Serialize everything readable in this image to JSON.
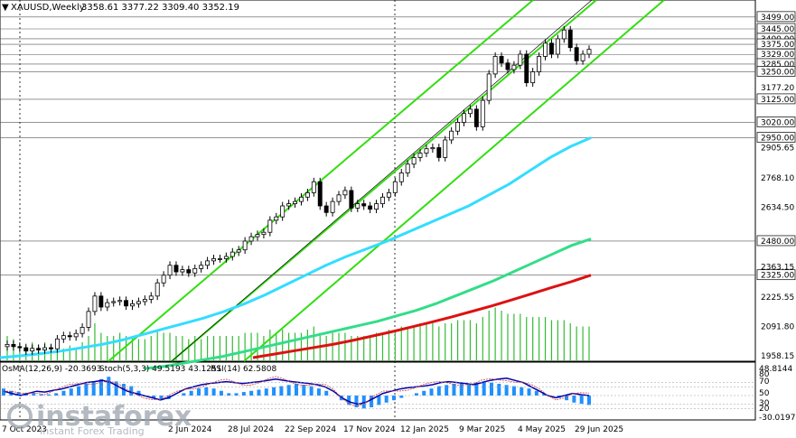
{
  "header": {
    "symbol": "XAUUSD,Weekly",
    "ohlc": "3358.61 3377.22 3309.40 3352.19"
  },
  "indicator_header": {
    "osma": "OsMA(12,26,9) -20.3693",
    "stoch": "Stoch(5,3,3) 49.5193 43.1251",
    "rsi": "RSI(14) 62.5808"
  },
  "watermark": {
    "brand": "instaforex",
    "tagline": "Instant Forex Trading"
  },
  "colors": {
    "up_candle": "#ffffff",
    "down_candle": "#000000",
    "ma_fast": "#33ddff",
    "ma_mid": "#33dd88",
    "ma_slow": "#dd1111",
    "channel": "#33dd11",
    "volume": "#33bb33",
    "osma": "#1e90ff",
    "stoch_main": "#0000aa",
    "stoch_signal": "#cc4444"
  },
  "chart_data": {
    "type": "candlestick",
    "price_axis_ticks": [
      "3499.00",
      "3445.00",
      "3400.00",
      "3375.00",
      "3329.00",
      "3285.00",
      "3250.00",
      "3177.20",
      "3125.00",
      "3020.00",
      "2950.00",
      "2905.65",
      "2768.10",
      "2634.50",
      "2480.00",
      "2363.15",
      "2325.00",
      "2225.55",
      "2091.80",
      "1958.15"
    ],
    "horizontal_levels": [
      3499.0,
      3445.0,
      3400.0,
      3375.0,
      3329.0,
      3285.0,
      3250.0,
      3125.0,
      3020.0,
      2950.0,
      2480.0,
      2325.0
    ],
    "ylim": [
      1950,
      3560
    ],
    "time_axis_labels": [
      "7 Oct 2023",
      "2 Jun 2024",
      "28 Jul 2024",
      "22 Sep 2024",
      "17 Nov 2024",
      "12 Jan 2025",
      "9 Mar 2025",
      "4 May 2025",
      "29 Jun 2025"
    ],
    "indicator_axis_ticks": [
      "48.8144",
      "80",
      "70",
      "50",
      "30",
      "20",
      "-30.0197"
    ],
    "closes": [
      2010,
      2000,
      1995,
      1980,
      1992,
      1985,
      1995,
      1990,
      2035,
      2050,
      2045,
      2060,
      2088,
      2160,
      2230,
      2180,
      2200,
      2205,
      2210,
      2185,
      2195,
      2205,
      2215,
      2230,
      2290,
      2325,
      2370,
      2340,
      2350,
      2335,
      2355,
      2370,
      2390,
      2400,
      2400,
      2410,
      2430,
      2440,
      2480,
      2500,
      2510,
      2520,
      2575,
      2590,
      2640,
      2650,
      2660,
      2680,
      2700,
      2750,
      2640,
      2610,
      2660,
      2690,
      2710,
      2630,
      2650,
      2640,
      2625,
      2650,
      2680,
      2700,
      2750,
      2790,
      2830,
      2860,
      2880,
      2900,
      2905,
      2860,
      2940,
      2980,
      3020,
      3060,
      3080,
      3000,
      3120,
      3240,
      3320,
      3290,
      3260,
      3280,
      3330,
      3200,
      3250,
      3320,
      3380,
      3330,
      3400,
      3440,
      3360,
      3300,
      3330,
      3352
    ],
    "ma_fast": [
      1950,
      1958,
      1968,
      1980,
      1995,
      2010,
      2030,
      2055,
      2080,
      2105,
      2130,
      2160,
      2195,
      2235,
      2280,
      2325,
      2370,
      2410,
      2445,
      2480,
      2520,
      2560,
      2600,
      2640,
      2690,
      2740,
      2800,
      2860,
      2910,
      2950
    ],
    "ma_mid": [
      1900,
      1910,
      1925,
      1940,
      1955,
      1975,
      1995,
      2015,
      2035,
      2055,
      2075,
      2095,
      2115,
      2140,
      2165,
      2195,
      2230,
      2265,
      2300,
      2340,
      2380,
      2420,
      2460,
      2490
    ],
    "ma_slow": [
      1950,
      1965,
      1980,
      1995,
      2010,
      2028,
      2048,
      2068,
      2090,
      2112,
      2135,
      2160,
      2185,
      2212,
      2240,
      2268,
      2295,
      2325
    ],
    "volume": [
      8,
      7,
      6,
      5,
      6,
      5,
      6,
      5,
      4,
      4,
      5,
      4,
      6,
      8,
      12,
      9,
      8,
      8,
      9,
      8,
      8,
      7,
      7,
      8,
      10,
      9,
      9,
      8,
      8,
      7,
      8,
      7,
      8,
      8,
      8,
      8,
      8,
      8,
      9,
      9,
      9,
      8,
      10,
      9,
      10,
      9,
      9,
      9,
      10,
      11,
      9,
      8,
      9,
      9,
      9,
      8,
      8,
      8,
      8,
      9,
      9,
      10,
      10,
      11,
      11,
      11,
      12,
      12,
      12,
      11,
      12,
      12,
      13,
      13,
      13,
      12,
      14,
      16,
      17,
      16,
      15,
      15,
      15,
      14,
      14,
      14,
      14,
      13,
      13,
      13,
      12,
      11,
      11,
      11
    ],
    "osma": [
      0.3,
      0.2,
      0.15,
      0.1,
      0.1,
      0.05,
      0.05,
      0.1,
      0.2,
      0.3,
      0.4,
      0.5,
      0.6,
      0.7,
      0.8,
      0.6,
      0.5,
      0.4,
      0.2,
      0.0,
      -0.1,
      -0.2,
      -0.15,
      0.0,
      0.1,
      0.2,
      0.3,
      0.35,
      0.3,
      0.2,
      0.1,
      0.1,
      0.15,
      0.2,
      0.25,
      0.3,
      0.35,
      0.4,
      0.45,
      0.5,
      0.45,
      0.4,
      0.3,
      0.2,
      0.0,
      -0.2,
      -0.4,
      -0.5,
      -0.55,
      -0.5,
      -0.4,
      -0.3,
      -0.2,
      -0.1,
      0.0,
      0.1,
      0.2,
      0.3,
      0.4,
      0.45,
      0.5,
      0.55,
      0.5,
      0.55,
      0.6,
      0.55,
      0.5,
      0.45,
      0.4,
      0.35,
      0.3,
      0.2,
      0.1,
      0.0,
      -0.1,
      -0.2,
      -0.3,
      -0.35,
      -0.4
    ],
    "stoch_main": [
      60,
      55,
      50,
      55,
      60,
      58,
      62,
      65,
      70,
      75,
      80,
      82,
      85,
      80,
      70,
      60,
      55,
      50,
      45,
      40,
      45,
      55,
      65,
      70,
      75,
      78,
      80,
      82,
      80,
      78,
      80,
      82,
      85,
      88,
      85,
      82,
      80,
      78,
      75,
      70,
      60,
      45,
      35,
      30,
      35,
      45,
      55,
      60,
      65,
      68,
      70,
      72,
      75,
      80,
      82,
      80,
      78,
      75,
      80,
      85,
      88,
      90,
      85,
      80,
      70,
      60,
      50,
      45,
      50,
      55,
      52,
      50
    ]
  }
}
